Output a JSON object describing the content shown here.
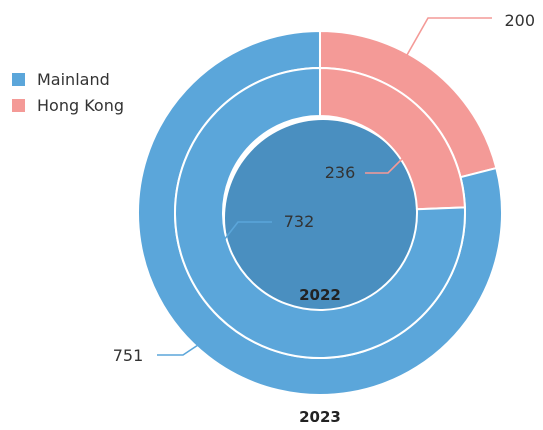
{
  "colors": {
    "mainland": "#5ba6da",
    "hong_kong": "#f49a97"
  },
  "legend": [
    {
      "name": "Mainland",
      "color": "#5ba6da"
    },
    {
      "name": "Hong Kong",
      "color": "#f49a97"
    }
  ],
  "chart_data": {
    "type": "pie",
    "subtype": "nested-donut",
    "categories": [
      "Mainland",
      "Hong Kong"
    ],
    "series": [
      {
        "name": "2023",
        "ring": "outer",
        "values": [
          751,
          200
        ]
      },
      {
        "name": "2022",
        "ring": "inner",
        "values": [
          732,
          236
        ]
      }
    ],
    "labels": {
      "outer_mainland": "751",
      "outer_hk": "200",
      "inner_mainland": "732",
      "inner_hk": "236"
    },
    "ring_titles": {
      "inner": "2022",
      "outer": "2023"
    },
    "legend_position": "top-left"
  }
}
